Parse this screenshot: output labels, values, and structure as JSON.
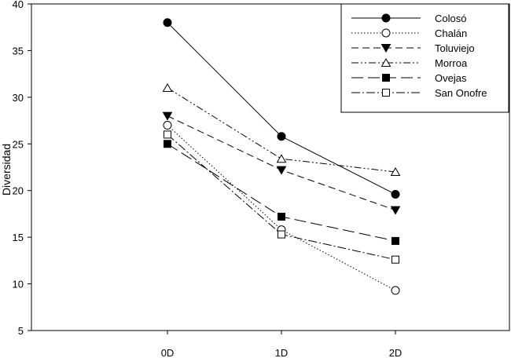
{
  "chart_data": {
    "type": "line",
    "title": "",
    "xlabel": "",
    "ylabel": "Diversidad",
    "categories": [
      "0D",
      "1D",
      "2D"
    ],
    "ylim": [
      5,
      40
    ],
    "yticks": [
      5,
      10,
      15,
      20,
      25,
      30,
      35,
      40
    ],
    "grid": false,
    "legend_position": "top-right",
    "series": [
      {
        "name": "Colosó",
        "values": [
          38,
          25.8,
          19.6
        ],
        "marker": "circle-filled",
        "dash": "solid"
      },
      {
        "name": "Chalán",
        "values": [
          27,
          15.8,
          9.3
        ],
        "marker": "circle-open",
        "dash": "dotted"
      },
      {
        "name": "Toluviejo",
        "values": [
          28,
          22.2,
          17.9
        ],
        "marker": "triangle-down-filled",
        "dash": "dashed"
      },
      {
        "name": "Morroa",
        "values": [
          31,
          23.4,
          22
        ],
        "marker": "triangle-up-open",
        "dash": "dash-dot-dot"
      },
      {
        "name": "Ovejas",
        "values": [
          25,
          17.2,
          14.6
        ],
        "marker": "square-filled",
        "dash": "long-dash"
      },
      {
        "name": "San Onofre",
        "values": [
          26,
          15.3,
          12.6
        ],
        "marker": "square-open",
        "dash": "dash-dot"
      }
    ]
  }
}
